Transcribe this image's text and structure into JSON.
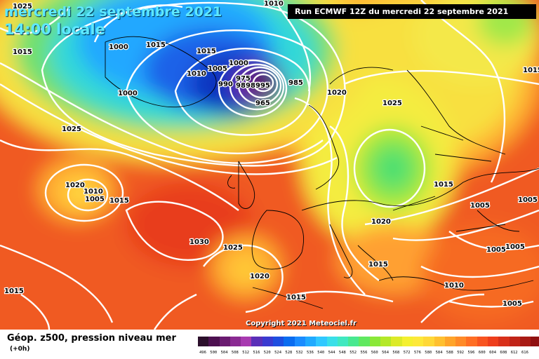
{
  "header": {
    "date_line": "mercredi 22 septembre 2021",
    "time_line": "14:00 locale",
    "run_label": "Run ECMWF 12Z du mercredi 22 septembre 2021"
  },
  "map": {
    "isobar_labels": [
      "1010",
      "1025",
      "1015",
      "1000",
      "1015",
      "1015",
      "1010",
      "1005",
      "1000",
      "990",
      "1000",
      "975",
      "980",
      "985",
      "995",
      "985",
      "965",
      "1020",
      "1025",
      "1025",
      "1020",
      "1010",
      "1005",
      "1015",
      "1015",
      "1005",
      "1005",
      "1030",
      "1025",
      "1020",
      "1020",
      "1005",
      "1005",
      "1015",
      "1015",
      "1010",
      "1015",
      "1005",
      "1015"
    ],
    "copyright": "Copyright 2021 Meteociel.fr"
  },
  "legend": {
    "title": "Géop. z500, pression niveau mer",
    "subtitle": "(+0h)",
    "scale_colors": [
      "#2b0f2b",
      "#4d1050",
      "#6a1b70",
      "#8a2a92",
      "#a83ab0",
      "#5a2fb8",
      "#3a3ad0",
      "#1e4ee0",
      "#0a6cf0",
      "#1a8cff",
      "#20aaff",
      "#30c8ff",
      "#3adfe8",
      "#40e8c0",
      "#48e890",
      "#60e860",
      "#8ae838",
      "#b4e828",
      "#dcea28",
      "#f4f030",
      "#fde83a",
      "#ffd838",
      "#ffc030",
      "#ffa42a",
      "#ff8a28",
      "#ff6e24",
      "#f85420",
      "#ee3e1c",
      "#d8301a",
      "#c02418",
      "#a81a14",
      "#901010",
      "#700808"
    ],
    "scale_labels": [
      "496",
      "500",
      "504",
      "508",
      "512",
      "516",
      "520",
      "524",
      "528",
      "532",
      "536",
      "540",
      "544",
      "548",
      "552",
      "556",
      "560",
      "564",
      "568",
      "572",
      "576",
      "580",
      "584",
      "588",
      "592",
      "596",
      "600",
      "604",
      "608",
      "612",
      "616"
    ]
  }
}
